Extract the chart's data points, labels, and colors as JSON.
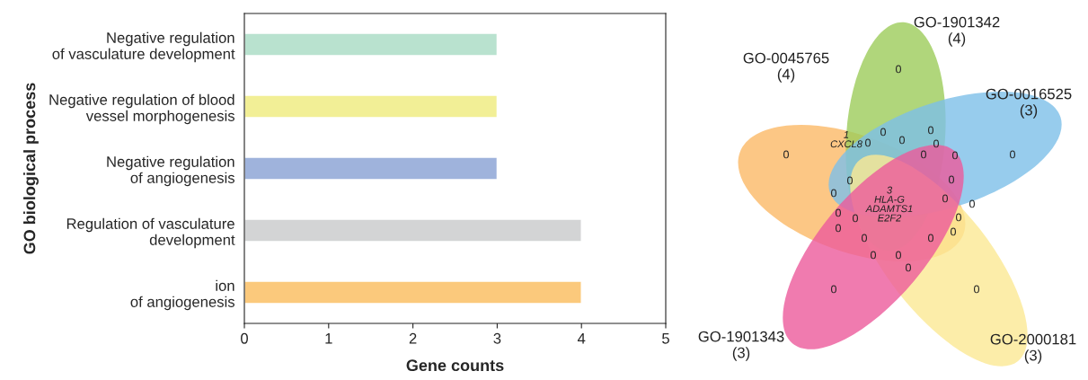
{
  "chart_data": [
    {
      "type": "bar",
      "orientation": "horizontal",
      "xlabel": "Gene counts",
      "ylabel": "GO biological process",
      "categories": [
        "Negative regulation\nof vasculature development",
        "Negative regulation of blood\nvessel morphogenesis",
        "Negative regulation\nof angiogenesis",
        "Regulation of vasculature\ndevelopment",
        "ion\nof angiogenesis"
      ],
      "values": [
        3,
        3,
        3,
        4,
        4
      ],
      "colors": [
        "#b9e2cf",
        "#f2ef96",
        "#9fb3dc",
        "#d3d4d5",
        "#fbc97c"
      ],
      "xlim": [
        0,
        5
      ],
      "xticks": [
        0,
        1,
        2,
        3,
        4,
        5
      ],
      "grid": false
    },
    {
      "type": "other",
      "annotations": [
        "GO-0045765\n(4)",
        "GO-1901342\n(4)",
        "GO-0016525\n(3)",
        "GO-2000181\n(3)",
        "GO-1901343\n(3)",
        "1\nCXCL8",
        "3\nHLA-G\nADAMTS1\nE2F2",
        "0",
        "0",
        "0",
        "0",
        "0",
        "0",
        "0",
        "0",
        "0",
        "0",
        "0",
        "0",
        "0",
        "0",
        "0",
        "0",
        "0",
        "0",
        "0",
        "0",
        "0",
        "0",
        "0",
        "0",
        "0",
        "0",
        "0"
      ]
    }
  ]
}
